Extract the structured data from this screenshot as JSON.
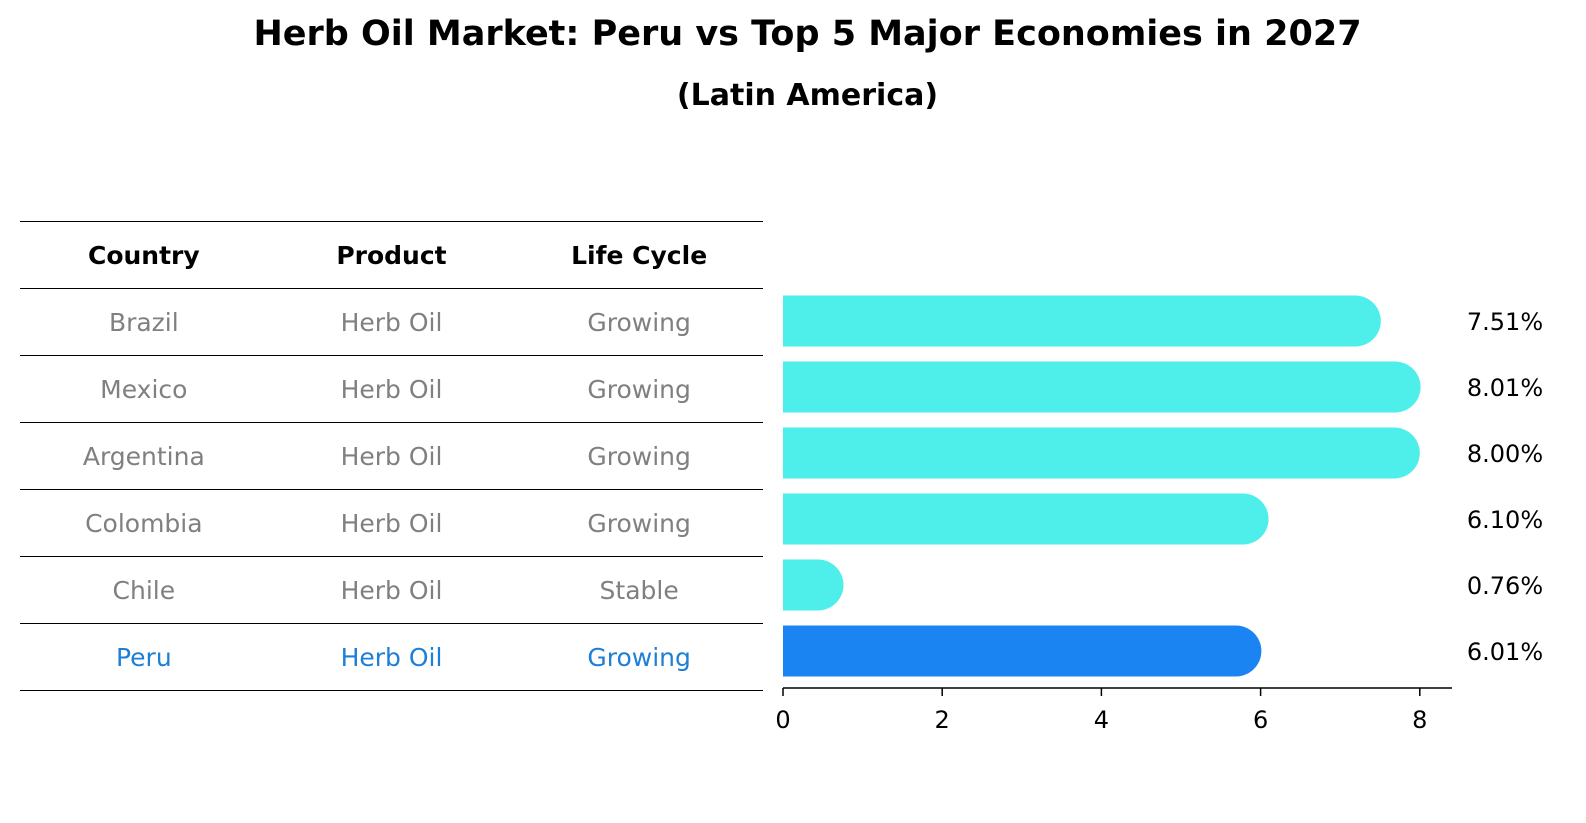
{
  "title": "Herb Oil Market: Peru vs Top 5 Major Economies in 2027",
  "subtitle": "(Latin America)",
  "table": {
    "headers": [
      "Country",
      "Product",
      "Life Cycle"
    ],
    "rows": [
      [
        "Brazil",
        "Herb Oil",
        "Growing"
      ],
      [
        "Mexico",
        "Herb Oil",
        "Growing"
      ],
      [
        "Argentina",
        "Herb Oil",
        "Growing"
      ],
      [
        "Colombia",
        "Herb Oil",
        "Growing"
      ],
      [
        "Chile",
        "Herb Oil",
        "Stable"
      ],
      [
        "Peru",
        "Herb Oil",
        "Growing"
      ]
    ],
    "highlight_row": 5
  },
  "colors": {
    "bar": "#4eeeea",
    "highlight_bar": "#1a85f2",
    "highlight_text": "#1e7fd6",
    "muted_text": "#808080"
  },
  "chart_data": {
    "type": "bar",
    "orientation": "horizontal",
    "categories": [
      "Brazil",
      "Mexico",
      "Argentina",
      "Colombia",
      "Chile",
      "Peru"
    ],
    "values": [
      7.51,
      8.01,
      8.0,
      6.1,
      0.76,
      6.01
    ],
    "value_labels": [
      "7.51%",
      "8.01%",
      "8.00%",
      "6.10%",
      "0.76%",
      "6.01%"
    ],
    "xticks": [
      "0",
      "2",
      "4",
      "6",
      "8"
    ],
    "xlim": [
      0,
      8.4
    ],
    "highlight": "Peru",
    "grid": false
  }
}
